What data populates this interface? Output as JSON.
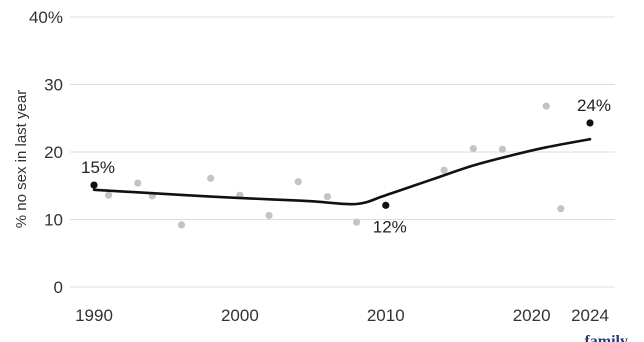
{
  "chart_data": {
    "type": "scatter",
    "ylabel": "% no sex in last year",
    "xlabel": "",
    "xlim": [
      1990,
      2024
    ],
    "ylim": [
      0,
      40
    ],
    "x_ticks": [
      1990,
      2000,
      2010,
      2020,
      2024
    ],
    "y_ticks": [
      {
        "value": 0,
        "label": "0"
      },
      {
        "value": 10,
        "label": "10"
      },
      {
        "value": 20,
        "label": "20"
      },
      {
        "value": 30,
        "label": "30"
      },
      {
        "value": 40,
        "label": "40%"
      }
    ],
    "grid": "horizontal",
    "points": [
      {
        "x": 1990,
        "y": 15.1,
        "highlight": true
      },
      {
        "x": 1991,
        "y": 13.6
      },
      {
        "x": 1993,
        "y": 15.4
      },
      {
        "x": 1994,
        "y": 13.5
      },
      {
        "x": 1996,
        "y": 9.2
      },
      {
        "x": 1998,
        "y": 16.1
      },
      {
        "x": 2000,
        "y": 13.6
      },
      {
        "x": 2002,
        "y": 10.6
      },
      {
        "x": 2004,
        "y": 15.6
      },
      {
        "x": 2006,
        "y": 13.4
      },
      {
        "x": 2008,
        "y": 9.6
      },
      {
        "x": 2010,
        "y": 12.1,
        "highlight": true
      },
      {
        "x": 2014,
        "y": 17.3
      },
      {
        "x": 2016,
        "y": 20.5
      },
      {
        "x": 2018,
        "y": 20.4
      },
      {
        "x": 2021,
        "y": 26.8
      },
      {
        "x": 2022,
        "y": 11.6
      },
      {
        "x": 2024,
        "y": 24.3,
        "highlight": true
      }
    ],
    "trend": [
      {
        "x": 1990,
        "y": 14.4
      },
      {
        "x": 1994,
        "y": 13.9
      },
      {
        "x": 1998,
        "y": 13.4
      },
      {
        "x": 2002,
        "y": 13.0
      },
      {
        "x": 2005,
        "y": 12.7
      },
      {
        "x": 2008,
        "y": 12.3
      },
      {
        "x": 2010,
        "y": 13.6
      },
      {
        "x": 2013,
        "y": 15.8
      },
      {
        "x": 2016,
        "y": 18.0
      },
      {
        "x": 2019,
        "y": 19.7
      },
      {
        "x": 2021,
        "y": 20.7
      },
      {
        "x": 2024,
        "y": 21.9
      }
    ],
    "annotations": [
      {
        "x": 1990,
        "y": 15.1,
        "label": "15%",
        "position": "above"
      },
      {
        "x": 2010,
        "y": 12.1,
        "label": "12%",
        "position": "below"
      },
      {
        "x": 2024,
        "y": 24.3,
        "label": "24%",
        "position": "above"
      }
    ],
    "colors": {
      "point": "#c4c4c4",
      "highlight": "#111111",
      "trend": "#111111",
      "grid": "#dddddd",
      "brand": "#1f3a7a"
    }
  },
  "footer": {
    "brand_text": "family"
  }
}
